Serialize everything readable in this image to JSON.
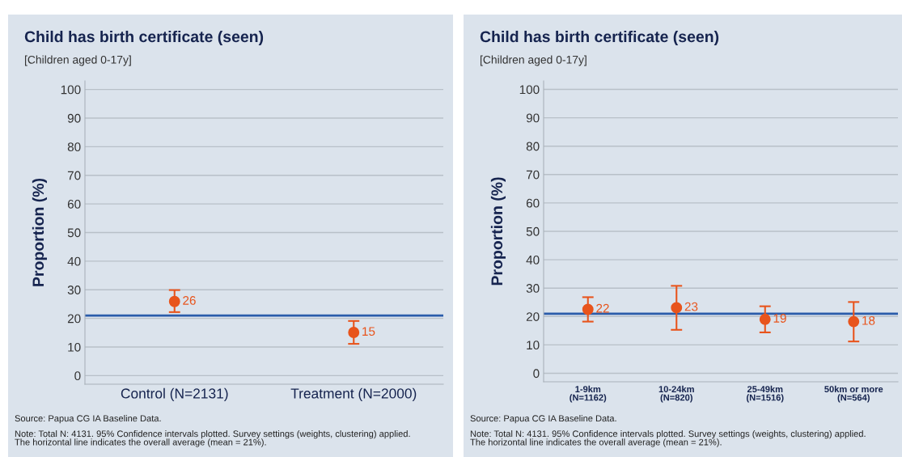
{
  "chart_data": [
    {
      "type": "scatter",
      "title": "Child has birth certificate (seen)",
      "subtitle": "[Children aged 0-17y]",
      "ylabel": "Proportion (%)",
      "categories": [
        "Control (N=2131)",
        "Treatment (N=2000)"
      ],
      "series": [
        {
          "color": "#e8541c",
          "values": [
            25.9,
            15.1
          ],
          "value_labels": [
            "26",
            "15"
          ],
          "errors": [
            [
              22.2,
              29.9
            ],
            [
              11.1,
              19.1
            ]
          ]
        }
      ],
      "ylim": [
        -3,
        103
      ],
      "yticks": [
        0,
        10,
        20,
        30,
        40,
        50,
        60,
        70,
        80,
        90,
        100
      ],
      "grid": "y",
      "marker": "circle",
      "ref_lines": [
        {
          "axis": "y",
          "value": 21,
          "color": "#2a5caa"
        }
      ],
      "annotations": [
        "Source: Papua CG IA Baseline Data.",
        "Note: Total N: 4131. 95% Confidence intervals plotted. Survey settings (weights, clustering) applied.\nThe horizontal line indicates the overall average (mean = 21%)."
      ]
    },
    {
      "type": "scatter",
      "title": "Child has birth certificate (seen)",
      "subtitle": "[Children aged 0-17y]",
      "ylabel": "Proportion (%)",
      "categories": [
        "1-9km\n(N=1162)",
        "10-24km\n(N=820)",
        "25-49km\n(N=1516)",
        "50km or more\n(N=564)"
      ],
      "series": [
        {
          "color": "#e8541c",
          "values": [
            22.5,
            23.1,
            19.0,
            18.2
          ],
          "value_labels": [
            "22",
            "23",
            "19",
            "18"
          ],
          "errors": [
            [
              18.2,
              26.8
            ],
            [
              15.3,
              30.8
            ],
            [
              14.4,
              23.6
            ],
            [
              11.2,
              25.1
            ]
          ]
        }
      ],
      "ylim": [
        -3,
        103
      ],
      "yticks": [
        0,
        10,
        20,
        30,
        40,
        50,
        60,
        70,
        80,
        90,
        100
      ],
      "grid": "y",
      "marker": "circle",
      "ref_lines": [
        {
          "axis": "y",
          "value": 21,
          "color": "#2a5caa"
        }
      ],
      "annotations": [
        "Source: Papua CG IA Baseline Data.",
        "Note: Total N: 4131. 95% Confidence intervals plotted. Survey settings (weights, clustering) applied.\nThe horizontal line indicates the overall average (mean = 21%)."
      ]
    }
  ]
}
